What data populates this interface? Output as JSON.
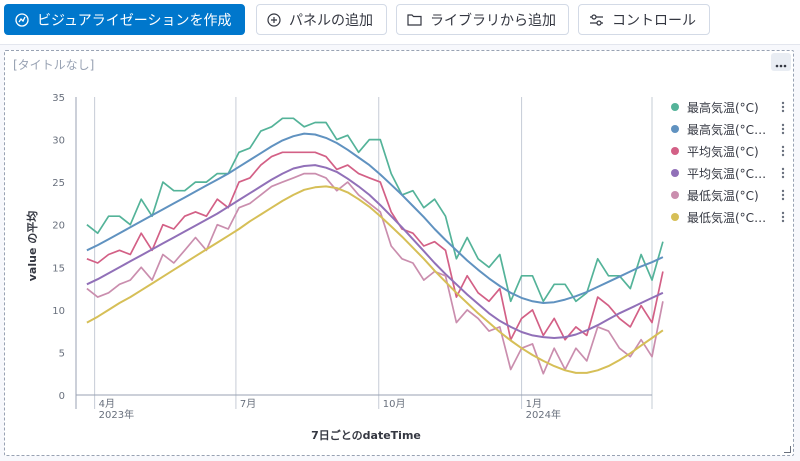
{
  "toolbar": {
    "create_viz": "ビジュアライゼーションを作成",
    "add_panel": "パネルの追加",
    "add_from_library": "ライブラリから追加",
    "controls": "コントロール",
    "create_viz_icon": "visualize-icon",
    "add_panel_icon": "plus-circle-icon",
    "add_from_library_icon": "folder-icon",
    "controls_icon": "controls-icon"
  },
  "panel": {
    "title": "[タイトルなし]"
  },
  "colors": {
    "primary": "#0077cc",
    "series": [
      "#54b399",
      "#6092c0",
      "#d36086",
      "#9170b8",
      "#ca8eae",
      "#d6bf57"
    ]
  },
  "chart_data": {
    "type": "line",
    "xlabel": "7日ごとのdateTime",
    "ylabel": "value の平均",
    "ylim": [
      0,
      35
    ],
    "yticks": [
      "0",
      "5",
      "10",
      "15",
      "20",
      "25",
      "30",
      "35"
    ],
    "xlim": [
      "2023-03-20",
      "2024-03-25"
    ],
    "x_interval_days": 7,
    "x_start": "2023-03-27",
    "xticks": [
      {
        "date": "2023-04-01",
        "label": "4月",
        "sublabel": "2023年"
      },
      {
        "date": "2023-07-01",
        "label": "7月",
        "sublabel": ""
      },
      {
        "date": "2023-10-01",
        "label": "10月",
        "sublabel": ""
      },
      {
        "date": "2024-01-01",
        "label": "1月",
        "sublabel": "2024年"
      }
    ],
    "grid": true,
    "legend": "right",
    "series": [
      {
        "name": "最高気温(°C)",
        "color": "#54b399",
        "values": [
          20,
          19,
          21,
          21,
          20,
          23,
          21,
          25,
          24,
          24,
          25,
          25,
          26,
          26,
          28.5,
          29,
          31,
          31.5,
          32.5,
          32.5,
          31.5,
          32,
          32,
          30,
          30.5,
          28.5,
          30,
          30,
          26,
          23.5,
          24,
          22,
          23,
          21,
          16,
          18.5,
          16,
          15,
          16.5,
          11,
          14,
          14,
          11,
          13,
          13,
          11,
          12,
          16,
          14,
          14,
          12.5,
          16.5,
          13.5,
          18
        ]
      },
      {
        "name": "最高気温(°C)移動平均",
        "color": "#6092c0",
        "values": [
          17,
          17.6,
          18.3,
          19,
          19.7,
          20.4,
          21.1,
          21.8,
          22.5,
          23.2,
          23.9,
          24.6,
          25.3,
          26,
          26.8,
          27.6,
          28.4,
          29.2,
          29.9,
          30.4,
          30.7,
          30.6,
          30.2,
          29.6,
          28.8,
          27.9,
          27,
          25.9,
          24.7,
          23.5,
          22.2,
          20.9,
          19.5,
          18.2,
          17,
          15.8,
          14.7,
          13.7,
          12.8,
          12,
          11.4,
          11,
          10.8,
          10.9,
          11.2,
          11.6,
          12.1,
          12.7,
          13.3,
          13.9,
          14.5,
          15.1,
          15.6,
          16.2
        ]
      },
      {
        "name": "平均気温(°C)",
        "color": "#d36086",
        "values": [
          16,
          15.5,
          16.5,
          17,
          16.5,
          19,
          17,
          20,
          19.5,
          21,
          21.5,
          21,
          23,
          22,
          25,
          25.5,
          27,
          28,
          28.5,
          28.5,
          28.5,
          28.5,
          28,
          26.5,
          27,
          26,
          25.5,
          25,
          21.5,
          19.5,
          19,
          17.5,
          18,
          17,
          11.5,
          14,
          12,
          11,
          12.5,
          6.5,
          9,
          10,
          7,
          9,
          6.5,
          8,
          7,
          11.5,
          10.5,
          9,
          8,
          10.5,
          8.5,
          14.5
        ]
      },
      {
        "name": "平均気温(°C)移動平均",
        "color": "#9170b8",
        "values": [
          13,
          13.6,
          14.3,
          15,
          15.7,
          16.4,
          17.1,
          17.8,
          18.5,
          19.2,
          19.9,
          20.6,
          21.3,
          22.1,
          22.9,
          23.7,
          24.5,
          25.3,
          26,
          26.6,
          26.9,
          27,
          26.7,
          26.2,
          25.4,
          24.5,
          23.5,
          22.3,
          21,
          19.7,
          18.3,
          16.9,
          15.5,
          14.2,
          13,
          11.8,
          10.7,
          9.6,
          8.7,
          8,
          7.4,
          7,
          6.8,
          6.7,
          6.8,
          7.1,
          7.6,
          8.2,
          8.9,
          9.6,
          10.2,
          10.8,
          11.4,
          12
        ]
      },
      {
        "name": "最低気温(°C)",
        "color": "#ca8eae",
        "values": [
          12.5,
          11.5,
          12,
          13,
          13.5,
          15,
          13.5,
          16.5,
          15.5,
          17,
          18.5,
          17,
          20,
          19.5,
          22,
          22.5,
          23.5,
          24.5,
          25,
          25.5,
          26,
          26,
          25.5,
          24,
          25,
          23.5,
          22.5,
          21.5,
          17.5,
          16,
          15.5,
          13.5,
          14.5,
          14,
          8.5,
          10,
          9,
          7.5,
          8,
          3,
          5.5,
          6,
          2.5,
          5.5,
          3,
          5.5,
          4,
          8,
          7.5,
          5.5,
          4.5,
          6.5,
          4.5,
          11
        ]
      },
      {
        "name": "最低気温(°C)移動平均",
        "color": "#d6bf57",
        "values": [
          8.5,
          9.2,
          10,
          10.8,
          11.5,
          12.3,
          13.1,
          13.9,
          14.7,
          15.5,
          16.3,
          17.1,
          17.9,
          18.7,
          19.5,
          20.4,
          21.2,
          22,
          22.8,
          23.5,
          24.1,
          24.4,
          24.5,
          24.3,
          23.8,
          23,
          22.1,
          21,
          19.8,
          18.6,
          17.3,
          16,
          14.6,
          13.3,
          12,
          10.8,
          9.6,
          8.5,
          7.4,
          6.4,
          5.5,
          4.7,
          4,
          3.4,
          2.9,
          2.6,
          2.6,
          2.9,
          3.4,
          4.1,
          4.9,
          5.8,
          6.7,
          7.6
        ]
      }
    ]
  }
}
